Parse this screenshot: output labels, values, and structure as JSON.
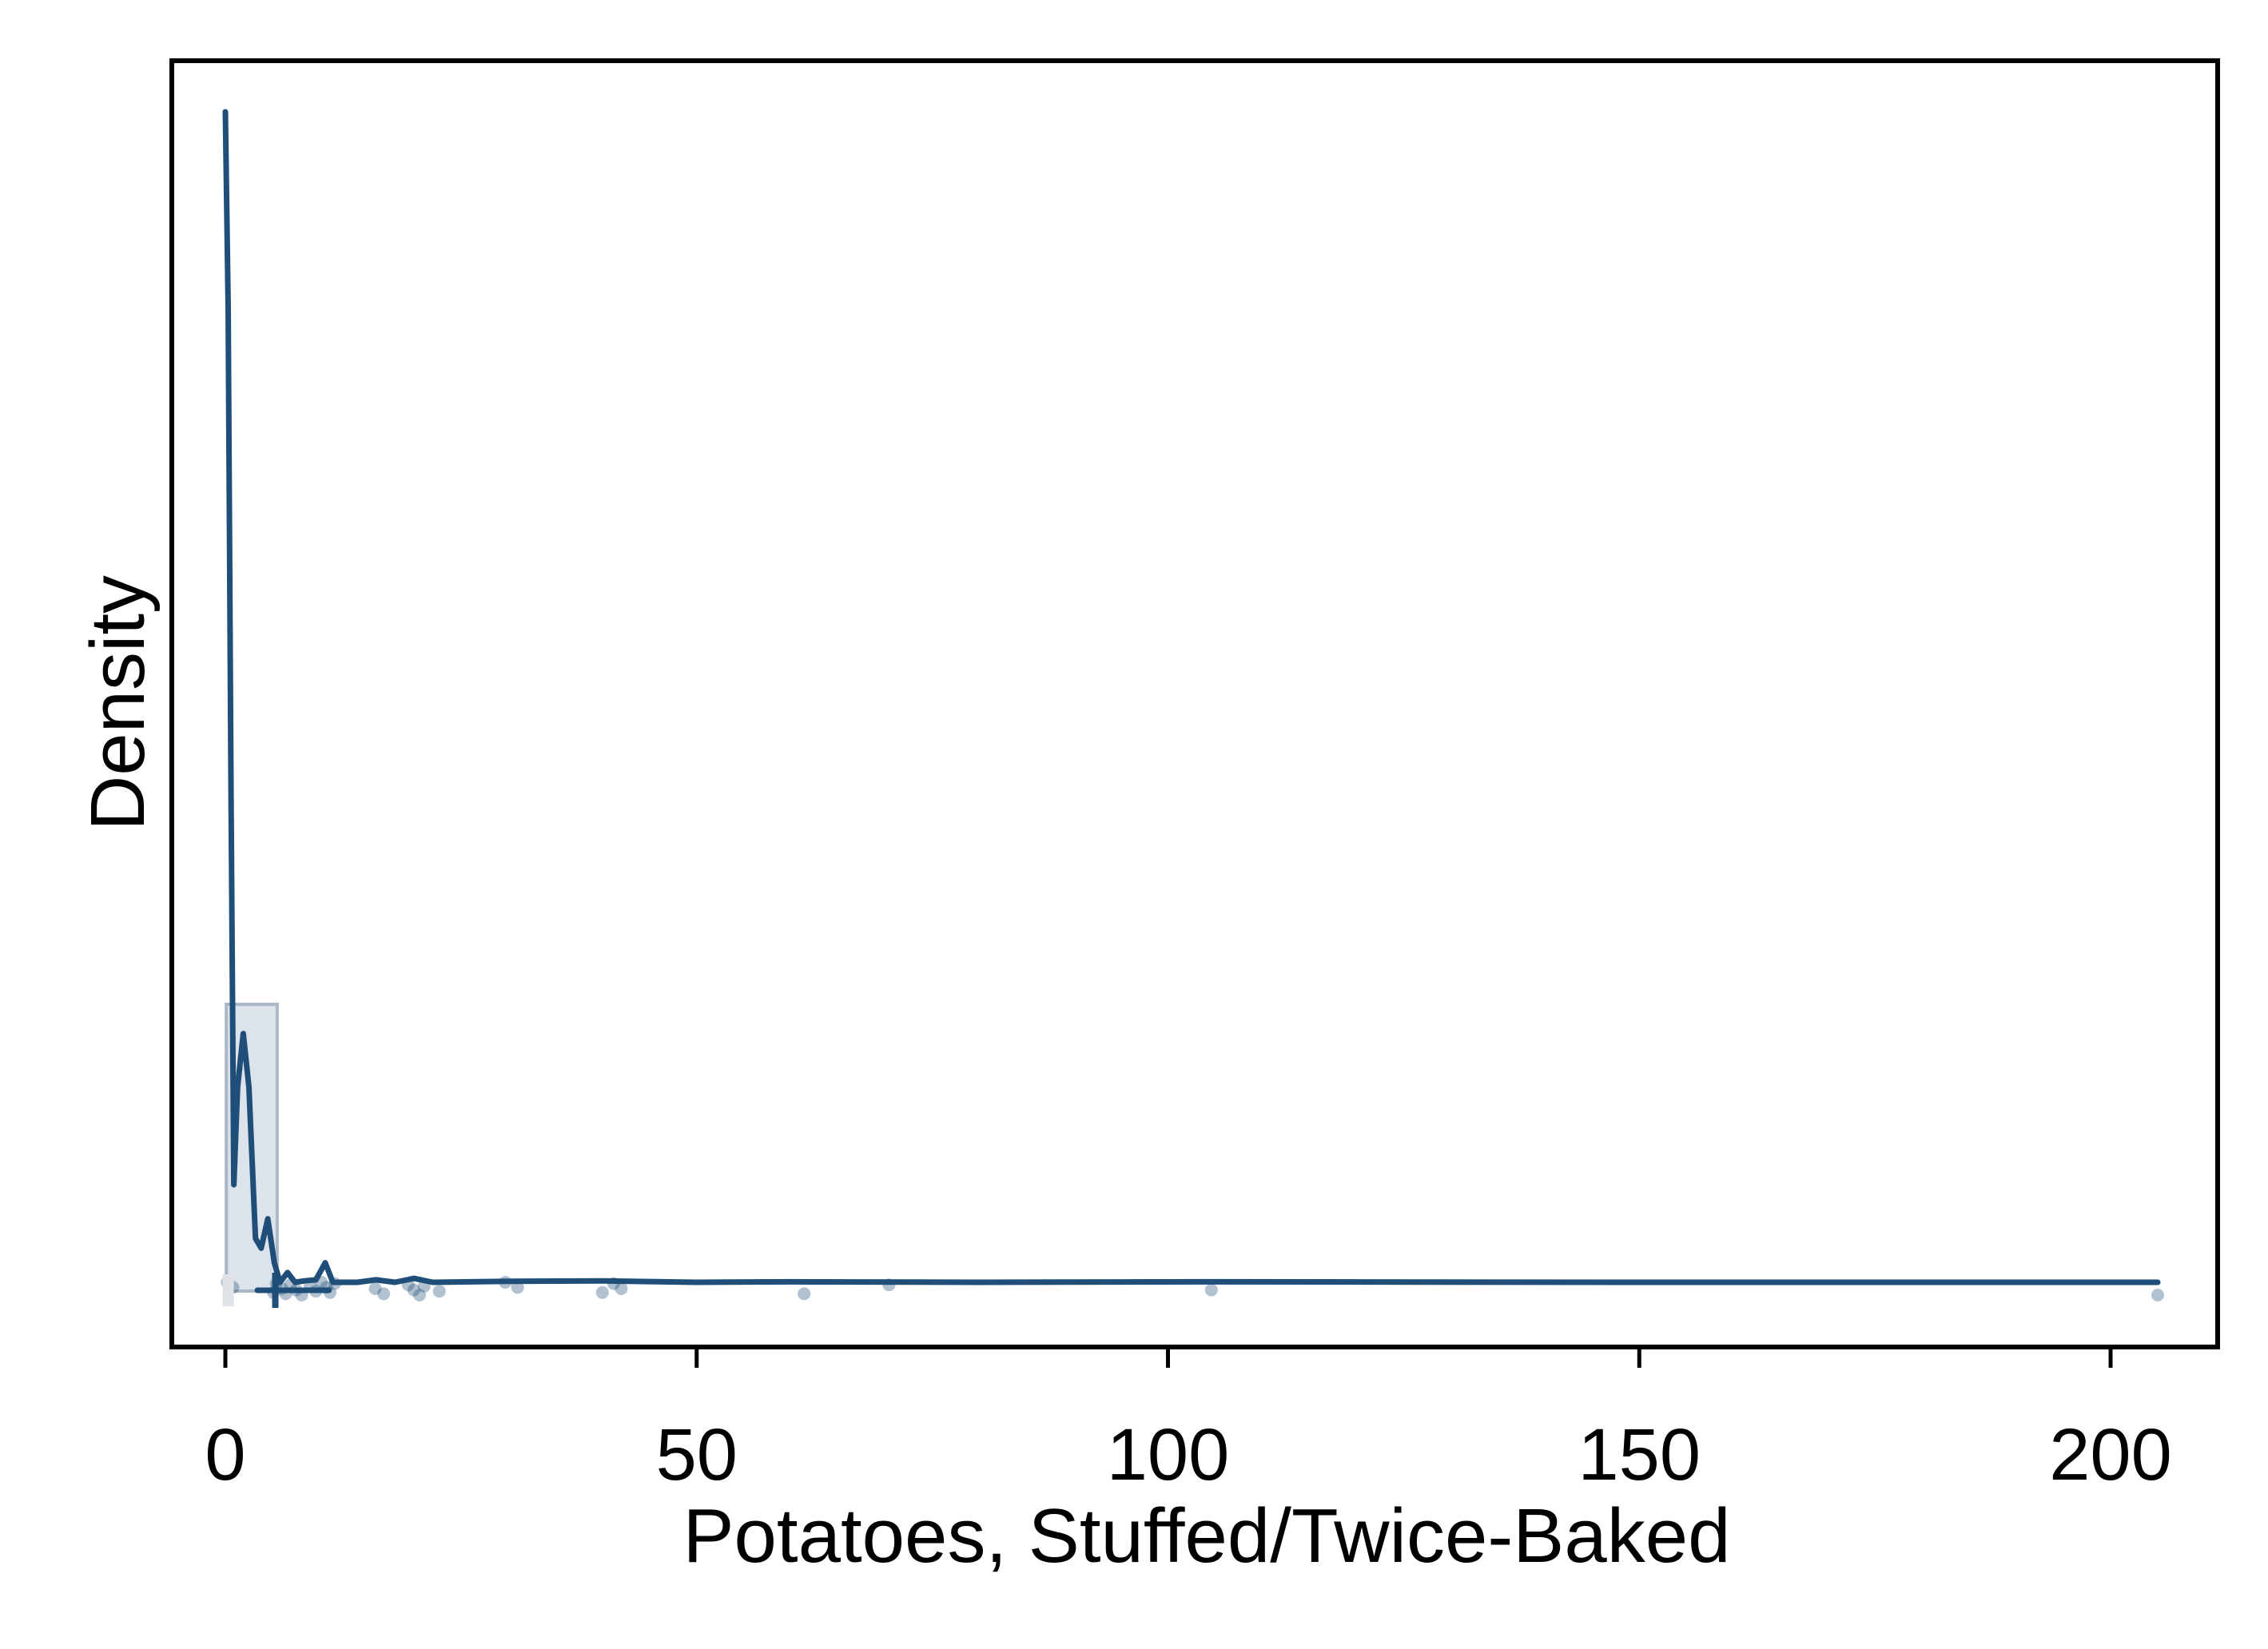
{
  "chart_data": {
    "type": "density",
    "xlabel": "Potatoes, Stuffed/Twice-Baked",
    "ylabel": "Density",
    "xlim": [
      -5,
      210
    ],
    "ylim": [
      -0.015,
      0.25
    ],
    "x_ticks": [
      0,
      50,
      100,
      150,
      200
    ],
    "x_tick_labels": [
      "0",
      "50",
      "100",
      "150",
      "200"
    ],
    "y_ticks": [],
    "grid": false,
    "legend": "none",
    "colors": {
      "line": "#1f4e79",
      "box_fill": "#c9d4e0",
      "box_stroke": "#a9b7c6",
      "points": "#1f4e79",
      "axis": "#000000"
    },
    "density_curve": [
      [
        0.0,
        0.24
      ],
      [
        0.3,
        0.2
      ],
      [
        0.6,
        0.1
      ],
      [
        0.9,
        0.02
      ],
      [
        1.3,
        0.04
      ],
      [
        1.9,
        0.051
      ],
      [
        2.5,
        0.04
      ],
      [
        3.2,
        0.009
      ],
      [
        3.8,
        0.007
      ],
      [
        4.5,
        0.013
      ],
      [
        5.2,
        0.004
      ],
      [
        5.8,
        0.0
      ],
      [
        6.6,
        0.002
      ],
      [
        7.4,
        0.0
      ],
      [
        8.4,
        0.0003
      ],
      [
        9.6,
        0.0005
      ],
      [
        10.6,
        0.004
      ],
      [
        11.4,
        0.0
      ],
      [
        14.0,
        0.0
      ],
      [
        16.0,
        0.0005
      ],
      [
        18.0,
        0.0
      ],
      [
        20.0,
        0.0008
      ],
      [
        22.0,
        0.0
      ],
      [
        30.0,
        0.0002
      ],
      [
        40.0,
        0.0003
      ],
      [
        50.0,
        0.0
      ],
      [
        60.0,
        0.0001
      ],
      [
        80.0,
        0.0
      ],
      [
        104.0,
        0.0001
      ],
      [
        150.0,
        0.0
      ],
      [
        205.0,
        0.0
      ]
    ],
    "box": {
      "q1": 0.1,
      "q3": 5.5,
      "y_top": 0.057,
      "y_bottom": -0.0018
    },
    "median_marker": 5.3,
    "whisker": [
      3.4,
      11.0
    ],
    "light_ticks": [
      0.0,
      0.6
    ],
    "observations": [
      0.2,
      0.8,
      5.1,
      5.4,
      6.0,
      6.4,
      6.9,
      7.5,
      8.1,
      9.0,
      9.6,
      10.2,
      10.7,
      11.1,
      11.6,
      15.9,
      16.8,
      19.4,
      20.0,
      20.6,
      21.1,
      22.7,
      29.7,
      31.0,
      40.0,
      41.2,
      42.0,
      61.4,
      70.4,
      104.6,
      205.0
    ]
  }
}
